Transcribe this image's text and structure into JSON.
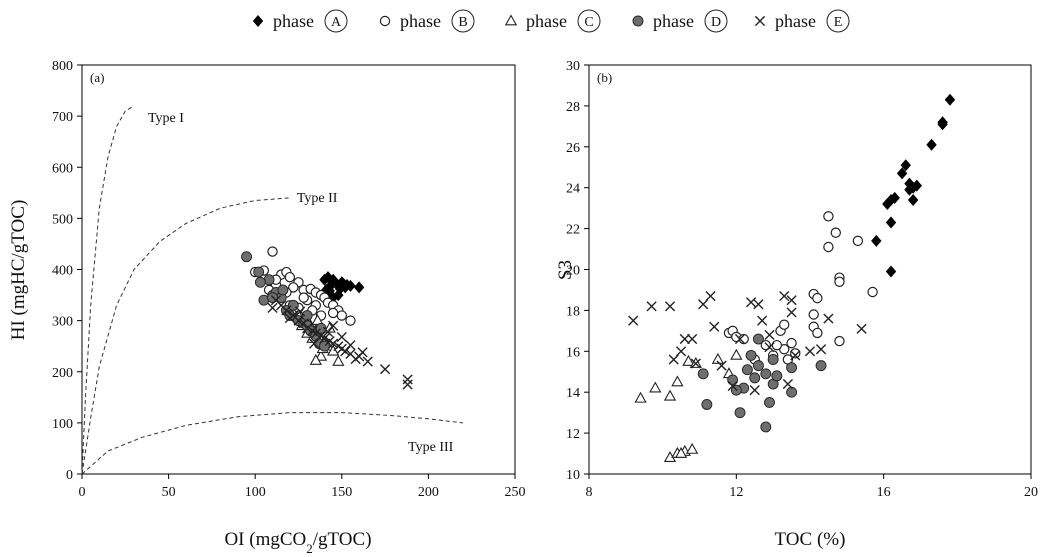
{
  "legend": [
    {
      "marker": "diamond",
      "label": "phase",
      "letter": "A"
    },
    {
      "marker": "open-circle",
      "label": "phase",
      "letter": "B"
    },
    {
      "marker": "open-triangle",
      "label": "phase",
      "letter": "C"
    },
    {
      "marker": "gray-circle",
      "label": "phase",
      "letter": "D"
    },
    {
      "marker": "cross",
      "label": "phase",
      "letter": "E"
    }
  ],
  "colors": {
    "filled": "#000000",
    "gray": "#6e6e6e",
    "line": "#222222"
  },
  "chart_data": [
    {
      "type": "scatter",
      "panel_label": "(a)",
      "title": "",
      "xlabel": "OI (mgCO₂/gTOC)",
      "ylabel": "HI (mgHC/gTOC)",
      "xlim": [
        0,
        250
      ],
      "ylim": [
        0,
        800
      ],
      "xticks": [
        0,
        50,
        100,
        150,
        200,
        250
      ],
      "yticks": [
        0,
        100,
        200,
        300,
        400,
        500,
        600,
        700,
        800
      ],
      "grid": false,
      "reference_curves": [
        {
          "label": "Type I",
          "x": [
            0,
            2,
            5,
            10,
            15,
            20,
            25,
            30
          ],
          "y": [
            0,
            150,
            330,
            520,
            620,
            680,
            710,
            720
          ]
        },
        {
          "label": "Type II",
          "x": [
            0,
            5,
            10,
            20,
            30,
            45,
            60,
            80,
            100,
            120
          ],
          "y": [
            0,
            110,
            210,
            330,
            400,
            455,
            490,
            520,
            535,
            540
          ]
        },
        {
          "label": "Type III",
          "x": [
            0,
            15,
            35,
            60,
            90,
            120,
            150,
            180,
            200,
            220
          ],
          "y": [
            0,
            45,
            72,
            95,
            112,
            120,
            120,
            114,
            108,
            100
          ]
        }
      ],
      "series": [
        {
          "name": "phase A",
          "marker": "diamond",
          "points": [
            [
              140,
              380
            ],
            [
              142,
              385
            ],
            [
              145,
              380
            ],
            [
              144,
              370
            ],
            [
              147,
              372
            ],
            [
              150,
              375
            ],
            [
              152,
              365
            ],
            [
              149,
              362
            ],
            [
              155,
              368
            ],
            [
              153,
              370
            ],
            [
              160,
              365
            ],
            [
              143,
              358
            ],
            [
              145,
              345
            ],
            [
              148,
              350
            ],
            [
              141,
              360
            ],
            [
              151,
              372
            ]
          ]
        },
        {
          "name": "phase B",
          "marker": "open-circle",
          "points": [
            [
              100,
              395
            ],
            [
              105,
              398
            ],
            [
              110,
              435
            ],
            [
              115,
              390
            ],
            [
              118,
              395
            ],
            [
              112,
              370
            ],
            [
              120,
              385
            ],
            [
              125,
              375
            ],
            [
              128,
              360
            ],
            [
              132,
              362
            ],
            [
              135,
              355
            ],
            [
              138,
              350
            ],
            [
              140,
              345
            ],
            [
              142,
              335
            ],
            [
              145,
              330
            ],
            [
              148,
              320
            ],
            [
              150,
              310
            ],
            [
              155,
              300
            ],
            [
              108,
              360
            ],
            [
              114,
              345
            ],
            [
              120,
              330
            ],
            [
              125,
              325
            ],
            [
              130,
              340
            ],
            [
              135,
              330
            ],
            [
              112,
              380
            ],
            [
              122,
              365
            ],
            [
              118,
              355
            ],
            [
              128,
              345
            ],
            [
              133,
              320
            ],
            [
              138,
              310
            ],
            [
              145,
              315
            ],
            [
              110,
              350
            ]
          ]
        },
        {
          "name": "phase C",
          "marker": "open-triangle",
          "points": [
            [
              120,
              318
            ],
            [
              125,
              310
            ],
            [
              128,
              300
            ],
            [
              132,
              290
            ],
            [
              135,
              280
            ],
            [
              137,
              270
            ],
            [
              140,
              260
            ],
            [
              142,
              250
            ],
            [
              138,
              230
            ],
            [
              145,
              240
            ],
            [
              148,
              220
            ],
            [
              135,
              222
            ],
            [
              130,
              275
            ],
            [
              136,
              300
            ],
            [
              143,
              285
            ],
            [
              127,
              290
            ],
            [
              133,
              265
            ],
            [
              139,
              245
            ]
          ]
        },
        {
          "name": "phase D",
          "marker": "gray-circle",
          "points": [
            [
              95,
              425
            ],
            [
              102,
              395
            ],
            [
              108,
              380
            ],
            [
              112,
              355
            ],
            [
              115,
              345
            ],
            [
              105,
              340
            ],
            [
              118,
              320
            ],
            [
              120,
              310
            ],
            [
              125,
              300
            ],
            [
              128,
              295
            ],
            [
              130,
              290
            ],
            [
              132,
              280
            ],
            [
              135,
              270
            ],
            [
              137,
              255
            ],
            [
              140,
              250
            ],
            [
              138,
              285
            ],
            [
              130,
              310
            ],
            [
              122,
              330
            ],
            [
              110,
              345
            ],
            [
              103,
              375
            ],
            [
              116,
              360
            ]
          ]
        },
        {
          "name": "phase E",
          "marker": "cross",
          "points": [
            [
              112,
              340
            ],
            [
              115,
              330
            ],
            [
              118,
              320
            ],
            [
              122,
              310
            ],
            [
              125,
              300
            ],
            [
              128,
              295
            ],
            [
              130,
              285
            ],
            [
              133,
              280
            ],
            [
              135,
              275
            ],
            [
              138,
              270
            ],
            [
              140,
              265
            ],
            [
              143,
              260
            ],
            [
              145,
              255
            ],
            [
              148,
              250
            ],
            [
              150,
              245
            ],
            [
              152,
              240
            ],
            [
              155,
              235
            ],
            [
              160,
              230
            ],
            [
              165,
              220
            ],
            [
              175,
              205
            ],
            [
              188,
              185
            ],
            [
              188,
              175
            ],
            [
              158,
              225
            ],
            [
              155,
              252
            ],
            [
              145,
              290
            ],
            [
              120,
              305
            ],
            [
              110,
              325
            ],
            [
              142,
              278
            ],
            [
              162,
              238
            ],
            [
              126,
              318
            ],
            [
              134,
              255
            ],
            [
              150,
              268
            ]
          ]
        }
      ]
    },
    {
      "type": "scatter",
      "panel_label": "(b)",
      "title": "",
      "xlabel": "TOC (%)",
      "ylabel": "S3",
      "xlim": [
        8,
        20
      ],
      "ylim": [
        10,
        30
      ],
      "xticks": [
        8,
        12,
        16,
        20
      ],
      "yticks": [
        10,
        12,
        14,
        16,
        18,
        20,
        22,
        24,
        26,
        28,
        30
      ],
      "grid": false,
      "series": [
        {
          "name": "phase A",
          "marker": "diamond",
          "points": [
            [
              15.8,
              21.4
            ],
            [
              16.2,
              19.9
            ],
            [
              16.2,
              22.3
            ],
            [
              16.1,
              23.2
            ],
            [
              16.2,
              23.4
            ],
            [
              16.3,
              23.5
            ],
            [
              16.5,
              24.7
            ],
            [
              16.6,
              25.1
            ],
            [
              16.7,
              23.9
            ],
            [
              16.8,
              24.0
            ],
            [
              16.8,
              23.4
            ],
            [
              16.9,
              24.1
            ],
            [
              17.3,
              26.1
            ],
            [
              17.6,
              27.1
            ],
            [
              17.6,
              27.2
            ],
            [
              17.8,
              28.3
            ],
            [
              16.7,
              24.2
            ]
          ]
        },
        {
          "name": "phase B",
          "marker": "open-circle",
          "points": [
            [
              14.5,
              22.6
            ],
            [
              14.5,
              21.1
            ],
            [
              14.7,
              21.8
            ],
            [
              15.3,
              21.4
            ],
            [
              14.8,
              19.6
            ],
            [
              14.8,
              19.4
            ],
            [
              15.7,
              18.9
            ],
            [
              14.1,
              18.8
            ],
            [
              14.2,
              18.6
            ],
            [
              14.1,
              17.8
            ],
            [
              14.1,
              17.2
            ],
            [
              14.2,
              16.9
            ],
            [
              14.8,
              16.5
            ],
            [
              13.5,
              16.4
            ],
            [
              13.3,
              16.1
            ],
            [
              13.1,
              16.3
            ],
            [
              13.2,
              17.0
            ],
            [
              13.3,
              17.3
            ],
            [
              13.0,
              15.8
            ],
            [
              13.4,
              15.6
            ],
            [
              13.6,
              15.9
            ],
            [
              11.8,
              16.9
            ],
            [
              11.9,
              17.0
            ],
            [
              12.0,
              16.7
            ],
            [
              12.2,
              16.6
            ],
            [
              12.8,
              16.3
            ],
            [
              12.5,
              15.6
            ]
          ]
        },
        {
          "name": "phase C",
          "marker": "open-triangle",
          "points": [
            [
              9.4,
              13.7
            ],
            [
              9.8,
              14.2
            ],
            [
              10.4,
              14.5
            ],
            [
              10.2,
              13.8
            ],
            [
              10.7,
              15.5
            ],
            [
              10.9,
              15.4
            ],
            [
              11.5,
              15.6
            ],
            [
              12.0,
              15.8
            ],
            [
              11.8,
              14.9
            ],
            [
              10.2,
              10.8
            ],
            [
              10.4,
              11.0
            ],
            [
              10.6,
              11.1
            ],
            [
              10.8,
              11.2
            ],
            [
              10.5,
              11.0
            ]
          ]
        },
        {
          "name": "phase D",
          "marker": "gray-circle",
          "points": [
            [
              11.1,
              14.9
            ],
            [
              11.2,
              13.4
            ],
            [
              11.9,
              14.6
            ],
            [
              12.1,
              13.0
            ],
            [
              12.2,
              14.2
            ],
            [
              12.3,
              15.1
            ],
            [
              12.4,
              15.8
            ],
            [
              12.6,
              16.6
            ],
            [
              12.5,
              14.7
            ],
            [
              12.8,
              14.9
            ],
            [
              12.8,
              12.3
            ],
            [
              12.9,
              13.5
            ],
            [
              13.0,
              14.4
            ],
            [
              13.1,
              14.8
            ],
            [
              13.5,
              15.2
            ],
            [
              13.5,
              14.0
            ],
            [
              14.3,
              15.3
            ],
            [
              12.0,
              14.1
            ],
            [
              12.6,
              15.3
            ],
            [
              13.0,
              15.6
            ]
          ]
        },
        {
          "name": "phase E",
          "marker": "cross",
          "points": [
            [
              9.2,
              17.5
            ],
            [
              9.7,
              18.2
            ],
            [
              10.2,
              18.2
            ],
            [
              10.3,
              15.6
            ],
            [
              10.5,
              16.0
            ],
            [
              10.6,
              16.6
            ],
            [
              10.8,
              16.6
            ],
            [
              10.9,
              15.4
            ],
            [
              11.1,
              18.3
            ],
            [
              11.3,
              18.7
            ],
            [
              11.4,
              17.2
            ],
            [
              11.6,
              15.3
            ],
            [
              11.9,
              14.3
            ],
            [
              12.1,
              16.6
            ],
            [
              12.4,
              18.4
            ],
            [
              12.6,
              18.3
            ],
            [
              12.7,
              17.5
            ],
            [
              12.9,
              16.8
            ],
            [
              12.9,
              16.2
            ],
            [
              13.3,
              18.7
            ],
            [
              13.5,
              18.5
            ],
            [
              13.4,
              14.4
            ],
            [
              13.6,
              15.8
            ],
            [
              14.0,
              16.0
            ],
            [
              14.3,
              16.1
            ],
            [
              14.5,
              17.6
            ],
            [
              15.4,
              17.1
            ],
            [
              12.5,
              14.1
            ],
            [
              13.5,
              17.9
            ]
          ]
        }
      ],
      "annotations": []
    }
  ]
}
